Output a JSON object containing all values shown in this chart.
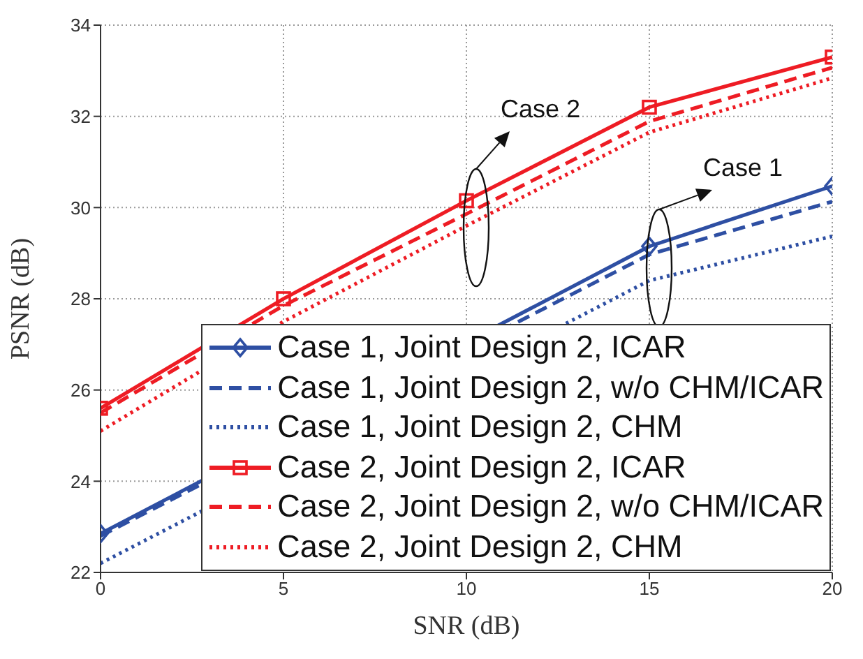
{
  "chart_data": {
    "type": "line",
    "xlabel": "SNR (dB)",
    "ylabel": "PSNR (dB)",
    "x": [
      0,
      5,
      10,
      15,
      20
    ],
    "series": [
      {
        "name": "Case 1, Joint Design 2, ICAR",
        "color": "#2e4fa3",
        "marker": "diamond",
        "line_style": "solid",
        "values": [
          22.85,
          null,
          null,
          29.15,
          30.47
        ]
      },
      {
        "name": "Case 1, Joint Design 2, w/o CHM/ICAR",
        "color": "#2e4fa3",
        "marker": "none",
        "line_style": "dashed",
        "values": [
          22.8,
          null,
          null,
          28.97,
          30.13
        ]
      },
      {
        "name": "Case 1, Joint Design 2, CHM",
        "color": "#2e4fa3",
        "marker": "none",
        "line_style": "dotted",
        "values": [
          22.2,
          null,
          null,
          28.4,
          29.37
        ]
      },
      {
        "name": "Case 2, Joint Design 2, ICAR",
        "color": "#ee1c24",
        "marker": "square",
        "line_style": "solid",
        "values": [
          25.6,
          28.0,
          30.15,
          32.2,
          33.3
        ]
      },
      {
        "name": "Case 2, Joint Design 2, w/o CHM/ICAR",
        "color": "#ee1c24",
        "marker": "none",
        "line_style": "dashed",
        "values": [
          25.5,
          27.85,
          29.86,
          31.89,
          33.07
        ]
      },
      {
        "name": "Case 2, Joint Design 2, CHM",
        "color": "#ee1c24",
        "marker": "none",
        "line_style": "dotted",
        "values": [
          25.1,
          27.5,
          29.6,
          31.65,
          32.84
        ]
      }
    ],
    "xlim": [
      0,
      20
    ],
    "xticks": [
      0,
      5,
      10,
      15,
      20
    ],
    "ylim": [
      22,
      34
    ],
    "yticks": [
      22,
      24,
      26,
      28,
      30,
      32,
      34
    ],
    "grid": true,
    "legend": "bottom right",
    "annotations": [
      "Case 2",
      "Case 1"
    ]
  }
}
